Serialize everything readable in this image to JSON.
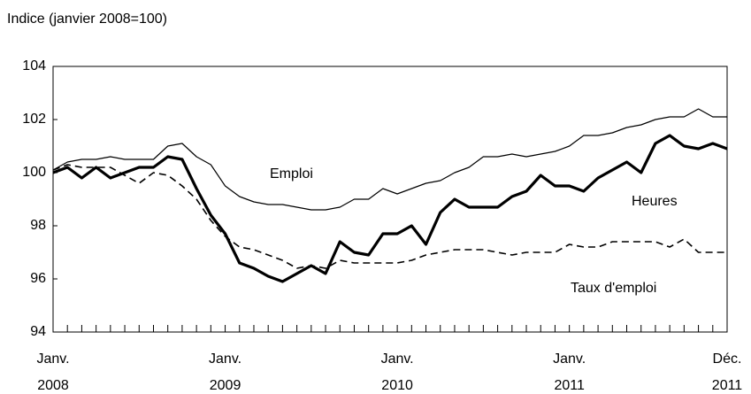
{
  "chart_data": {
    "type": "line",
    "title": "Indice (janvier 2008=100)",
    "categories": [
      "Janv. 2008",
      null,
      null,
      null,
      null,
      null,
      null,
      null,
      null,
      null,
      null,
      null,
      "Janv. 2009",
      null,
      null,
      null,
      null,
      null,
      null,
      null,
      null,
      null,
      null,
      null,
      "Janv. 2010",
      null,
      null,
      null,
      null,
      null,
      null,
      null,
      null,
      null,
      null,
      null,
      "Janv. 2011",
      null,
      null,
      null,
      null,
      null,
      null,
      null,
      null,
      null,
      null,
      "Déc. 2011"
    ],
    "series": [
      {
        "name": "Emploi",
        "color": "#000000",
        "width": 1.2,
        "dash": false,
        "values": [
          100.1,
          100.4,
          100.5,
          100.5,
          100.6,
          100.5,
          100.5,
          100.5,
          101.0,
          101.1,
          100.6,
          100.3,
          99.5,
          99.1,
          98.9,
          98.8,
          98.8,
          98.7,
          98.6,
          98.6,
          98.7,
          99.0,
          99.0,
          99.4,
          99.2,
          99.4,
          99.6,
          99.7,
          100.0,
          100.2,
          100.6,
          100.6,
          100.7,
          100.6,
          100.7,
          100.8,
          101.0,
          101.4,
          101.4,
          101.5,
          101.7,
          101.8,
          102.0,
          102.1,
          102.1,
          102.4,
          102.1,
          102.1
        ]
      },
      {
        "name": "Heures",
        "color": "#000000",
        "width": 3.2,
        "dash": false,
        "values": [
          100.0,
          100.2,
          99.8,
          100.2,
          99.8,
          100.0,
          100.2,
          100.2,
          100.6,
          100.5,
          99.4,
          98.4,
          97.7,
          96.6,
          96.4,
          96.1,
          95.9,
          96.2,
          96.5,
          96.2,
          97.4,
          97.0,
          96.9,
          97.7,
          97.7,
          98.0,
          97.3,
          98.5,
          99.0,
          98.7,
          98.7,
          98.7,
          99.1,
          99.3,
          99.9,
          99.5,
          99.5,
          99.3,
          99.8,
          100.1,
          100.4,
          100.0,
          101.1,
          101.4,
          101.0,
          100.9,
          101.1,
          100.9
        ]
      },
      {
        "name": "Taux d'emploi",
        "color": "#000000",
        "width": 1.6,
        "dash": true,
        "values": [
          100.1,
          100.3,
          100.2,
          100.2,
          100.2,
          99.9,
          99.6,
          100.0,
          99.9,
          99.5,
          99.0,
          98.2,
          97.6,
          97.2,
          97.1,
          96.9,
          96.7,
          96.4,
          96.5,
          96.4,
          96.7,
          96.6,
          96.6,
          96.6,
          96.6,
          96.7,
          96.9,
          97.0,
          97.1,
          97.1,
          97.1,
          97.0,
          96.9,
          97.0,
          97.0,
          97.0,
          97.3,
          97.2,
          97.2,
          97.4,
          97.4,
          97.4,
          97.4,
          97.2,
          97.5,
          97.0,
          97.0,
          97.0
        ]
      }
    ],
    "ylim": [
      94,
      104
    ],
    "yticks": [
      94,
      96,
      98,
      100,
      102,
      104
    ],
    "grid": false,
    "legend": false
  }
}
